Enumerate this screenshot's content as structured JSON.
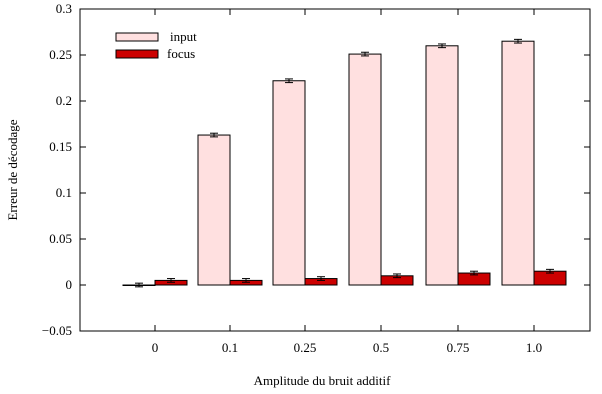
{
  "chart_data": {
    "type": "bar",
    "categories": [
      "0",
      "0.1",
      "0.25",
      "0.5",
      "0.75",
      "1.0"
    ],
    "series": [
      {
        "name": "input",
        "color": "#ffe0e0",
        "stroke": "#000000",
        "values": [
          0.0,
          0.163,
          0.222,
          0.251,
          0.26,
          0.265
        ],
        "errors": [
          0.002,
          0.002,
          0.002,
          0.002,
          0.002,
          0.002
        ]
      },
      {
        "name": "focus",
        "color": "#cc0000",
        "stroke": "#000000",
        "values": [
          0.005,
          0.005,
          0.007,
          0.01,
          0.013,
          0.015
        ],
        "errors": [
          0.002,
          0.002,
          0.002,
          0.002,
          0.002,
          0.002
        ]
      }
    ],
    "xlabel": "Amplitude du bruit additif",
    "ylabel": "Erreur de décodage",
    "ylim": [
      -0.05,
      0.3
    ],
    "yticks": [
      -0.05,
      0,
      0.05,
      0.1,
      0.15,
      0.2,
      0.25,
      0.3
    ],
    "ytick_labels": [
      "−0.05",
      "0",
      "0.05",
      "0.1",
      "0.15",
      "0.2",
      "0.25",
      "0.3"
    ],
    "legend_position": "top-left",
    "grid": false
  }
}
